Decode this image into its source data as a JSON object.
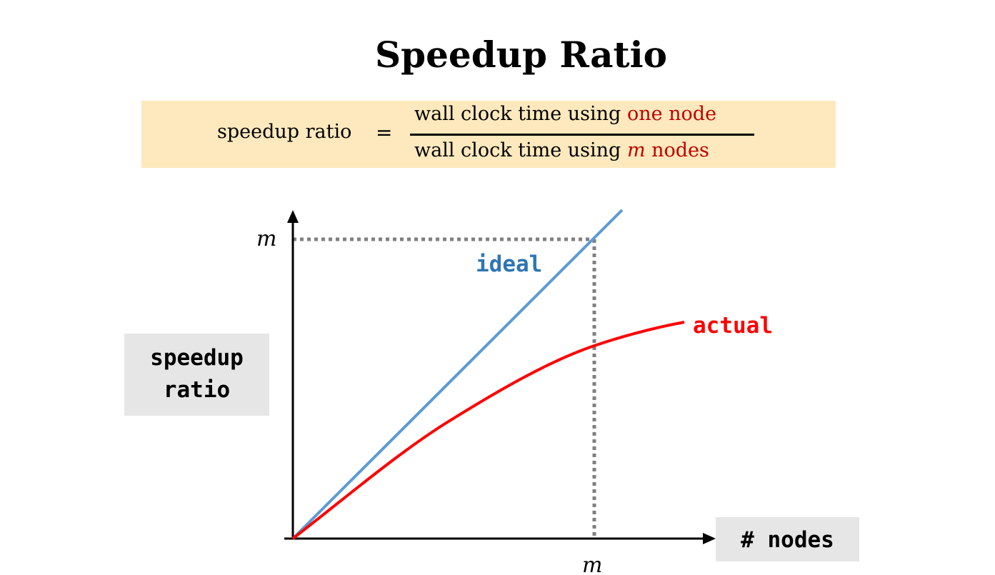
{
  "title": "Speedup Ratio",
  "formula": {
    "lhs": "speedup ratio",
    "equals": "=",
    "numerator_prefix": "wall clock time using ",
    "numerator_highlight": "one node",
    "denominator_prefix": "wall clock time using ",
    "denominator_var": "m",
    "denominator_suffix": " nodes",
    "highlight_color": "#c00000",
    "background_color": "#fde9bd"
  },
  "axes": {
    "x_label": "# nodes",
    "y_label_line1": "speedup",
    "y_label_line2": "ratio",
    "x_tick": "m",
    "y_tick": "m",
    "label_background": "#e6e6e6"
  },
  "series": {
    "ideal": {
      "label": "ideal",
      "color": "#5b9bd5"
    },
    "actual": {
      "label": "actual",
      "color": "#ff0000"
    }
  },
  "reference_lines": {
    "style": "dotted",
    "color": "#808080"
  }
}
